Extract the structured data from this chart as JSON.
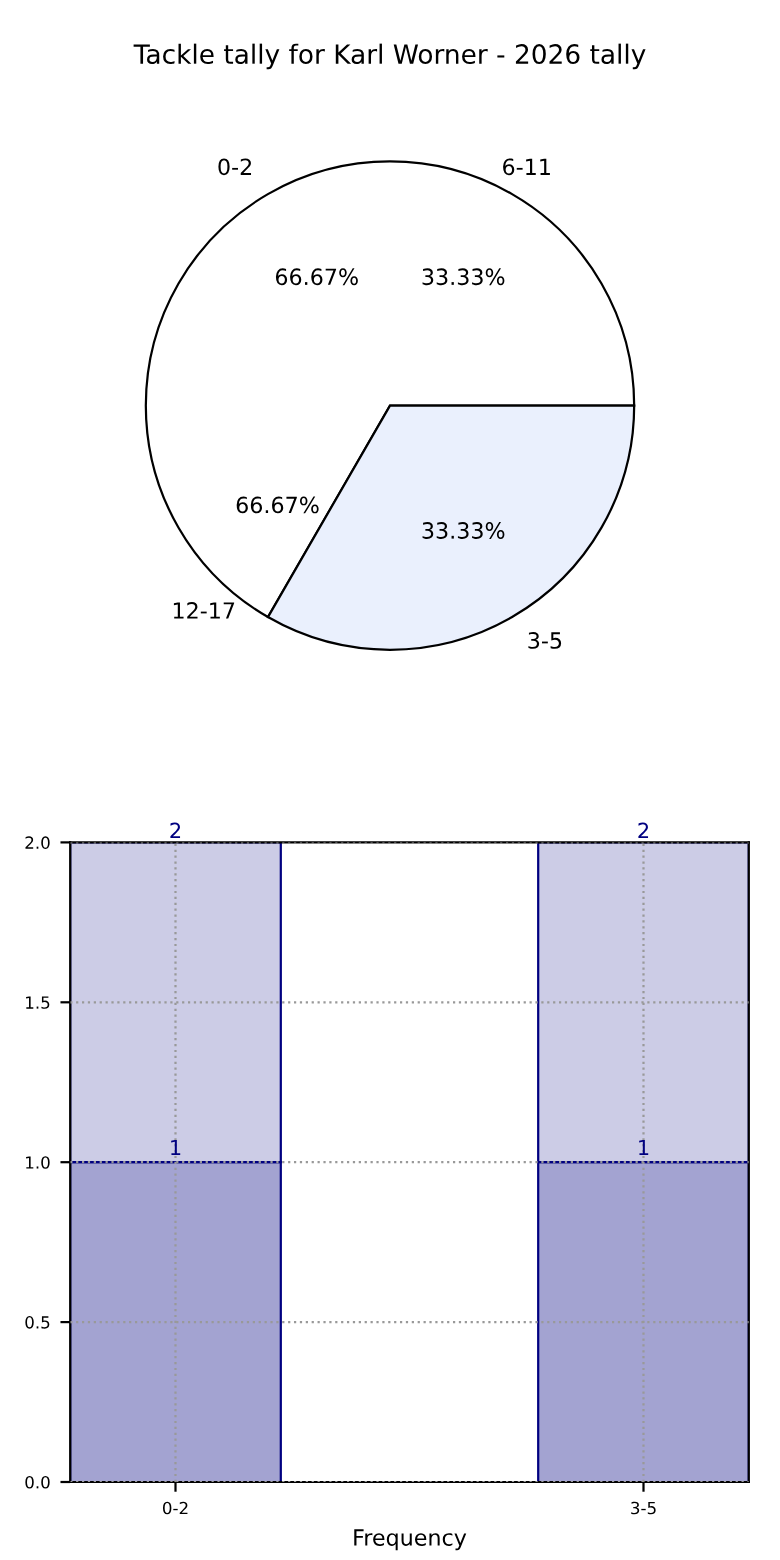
{
  "chart_data": [
    {
      "type": "pie",
      "title": "Tackle tally for Karl Worner - 2026 tally",
      "categories": [
        "0-2",
        "3-5"
      ],
      "values": [
        66.67,
        33.33
      ],
      "colors": [
        "#ffffff",
        "#eaf0fd"
      ],
      "value_labels": [
        "66.67%",
        "33.33%"
      ],
      "annotations": [
        "6-11",
        "12-17",
        "66.67%",
        "33.33%"
      ]
    },
    {
      "type": "bar",
      "stacked": true,
      "categories": [
        "0-2",
        "3-5"
      ],
      "xlabel": "Frequency",
      "series": [
        {
          "color": "#a3a3d1",
          "values": [
            1,
            1
          ],
          "value_labels": [
            "1",
            "1"
          ]
        },
        {
          "color": "#cccce6",
          "values": [
            1,
            1
          ]
        }
      ],
      "totals": [
        "2",
        "2"
      ],
      "ylim": [
        0,
        2
      ],
      "yticks": [
        {
          "value": 0,
          "label": "0.0"
        },
        {
          "value": 0.5,
          "label": "0.5"
        },
        {
          "value": 1,
          "label": "1.0"
        },
        {
          "value": 1.5,
          "label": "1.5"
        },
        {
          "value": 2,
          "label": "2.0"
        }
      ],
      "grid": true
    }
  ]
}
